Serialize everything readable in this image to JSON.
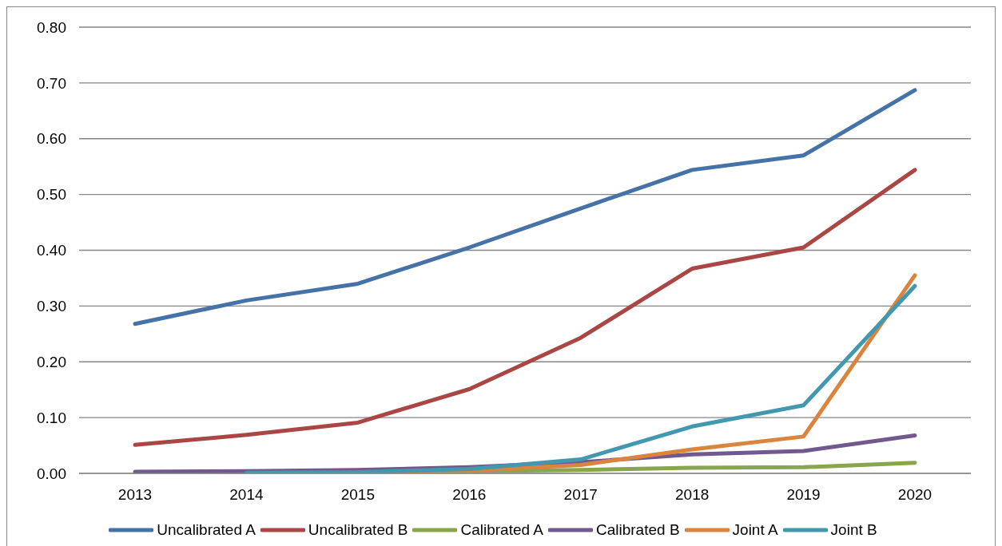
{
  "chart_data": {
    "type": "line",
    "categories": [
      "2013",
      "2014",
      "2015",
      "2016",
      "2017",
      "2018",
      "2019",
      "2020"
    ],
    "series": [
      {
        "name": "Uncalibrated A",
        "color": "#4572a7",
        "values": [
          0.268,
          0.31,
          0.34,
          0.405,
          0.475,
          0.544,
          0.57,
          0.687
        ]
      },
      {
        "name": "Uncalibrated B",
        "color": "#aa4643",
        "values": [
          0.051,
          0.069,
          0.091,
          0.151,
          0.243,
          0.367,
          0.405,
          0.544
        ]
      },
      {
        "name": "Calibrated A",
        "color": "#89a54e",
        "values": [
          null,
          0.001,
          0.002,
          0.004,
          0.006,
          0.01,
          0.011,
          0.019
        ]
      },
      {
        "name": "Calibrated B",
        "color": "#71588f",
        "values": [
          0.003,
          0.004,
          0.006,
          0.011,
          0.02,
          0.034,
          0.04,
          0.068
        ]
      },
      {
        "name": "Joint A",
        "color": "#db843d",
        "values": [
          null,
          null,
          0.001,
          0.005,
          0.015,
          0.043,
          0.066,
          0.355
        ]
      },
      {
        "name": "Joint B",
        "color": "#4198af",
        "values": [
          null,
          0.001,
          0.002,
          0.008,
          0.025,
          0.084,
          0.122,
          0.336
        ]
      }
    ],
    "ylim": [
      0,
      0.8
    ],
    "yticks": [
      {
        "value": 0,
        "label": "0.00"
      },
      {
        "value": 0.1,
        "label": "0.10"
      },
      {
        "value": 0.2,
        "label": "0.20"
      },
      {
        "value": 0.3,
        "label": "0.30"
      },
      {
        "value": 0.4,
        "label": "0.40"
      },
      {
        "value": 0.5,
        "label": "0.50"
      },
      {
        "value": 0.6,
        "label": "0.60"
      },
      {
        "value": 0.7,
        "label": "0.70"
      },
      {
        "value": 0.8,
        "label": "0.80"
      }
    ],
    "grid": "y",
    "legend": "bottom",
    "marker": "none",
    "line_style": "solid"
  }
}
